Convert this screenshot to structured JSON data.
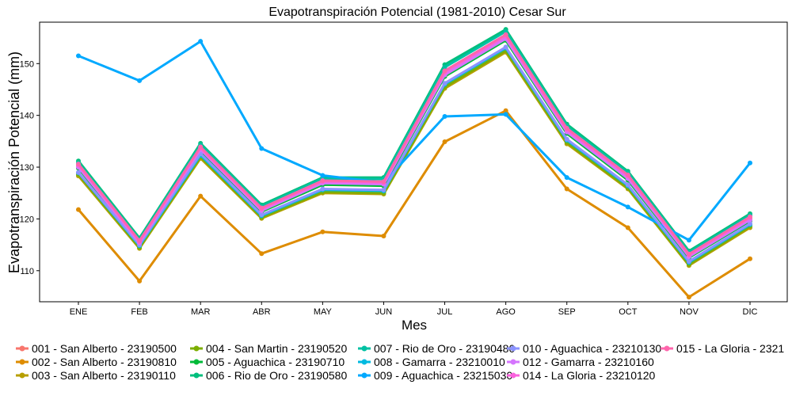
{
  "chart_data": {
    "type": "line",
    "title": "Evapotranspiración Potencial (1981-2010)  Cesar Sur",
    "xlabel": "Mes",
    "ylabel": "Evapotranspiración Potencial  (mm)",
    "categories": [
      "ENE",
      "FEB",
      "MAR",
      "ABR",
      "MAY",
      "JUN",
      "JUL",
      "AGO",
      "SEP",
      "OCT",
      "NOV",
      "DIC"
    ],
    "ylim": [
      104,
      158
    ],
    "yticks": [
      110,
      120,
      130,
      140,
      150
    ],
    "grid": false,
    "legend_position": "bottom",
    "series": [
      {
        "name": "001 - San Alberto - 23190500",
        "color": "#F8766D",
        "values": [
          130.2,
          115.5,
          133.5,
          121.7,
          127.0,
          126.8,
          148.0,
          155.0,
          137.0,
          128.0,
          112.8,
          120.0
        ]
      },
      {
        "name": "002 - San Alberto - 23190810",
        "color": "#DE8C00",
        "values": [
          121.8,
          108.0,
          124.4,
          113.3,
          117.5,
          116.7,
          134.9,
          140.9,
          125.8,
          118.3,
          104.9,
          112.3
        ]
      },
      {
        "name": "003 - San Alberto - 23190110",
        "color": "#B79F00",
        "values": [
          128.3,
          114.3,
          131.7,
          120.1,
          125.0,
          124.8,
          145.2,
          152.2,
          134.5,
          125.8,
          111.0,
          118.3
        ]
      },
      {
        "name": "004 - San Martin - 23190520",
        "color": "#7CAE00",
        "values": [
          128.6,
          114.5,
          132.0,
          120.3,
          125.2,
          125.0,
          145.5,
          152.5,
          134.8,
          126.0,
          111.2,
          118.6
        ]
      },
      {
        "name": "005 - Aguachica - 23190710",
        "color": "#00BA38",
        "values": [
          129.8,
          115.2,
          133.2,
          121.4,
          126.6,
          126.4,
          147.5,
          154.5,
          136.5,
          127.5,
          112.5,
          119.6
        ]
      },
      {
        "name": "006 - Rio de Oro - 23190580",
        "color": "#00BF7D",
        "values": [
          131.2,
          116.3,
          134.6,
          122.7,
          128.0,
          128.0,
          149.8,
          156.6,
          138.3,
          129.2,
          113.8,
          121.0
        ]
      },
      {
        "name": "007 - Rio de Oro - 23190480",
        "color": "#00C1A3",
        "values": [
          130.8,
          116.0,
          134.3,
          122.4,
          127.8,
          127.7,
          149.3,
          156.2,
          137.9,
          128.9,
          113.5,
          120.7
        ]
      },
      {
        "name": "008 - Gamarra - 23210010",
        "color": "#00BAE0",
        "values": [
          128.9,
          114.8,
          132.3,
          120.6,
          125.6,
          125.4,
          146.0,
          153.0,
          135.2,
          126.4,
          111.6,
          118.9
        ]
      },
      {
        "name": "009 - Aguachica - 23215030",
        "color": "#00A9FF",
        "values": [
          151.5,
          146.7,
          154.3,
          133.6,
          128.4,
          127.0,
          139.8,
          140.2,
          128.0,
          122.3,
          115.9,
          130.8
        ]
      },
      {
        "name": "010 - Aguachica - 23210130",
        "color": "#8B93FF",
        "values": [
          129.0,
          115.0,
          132.6,
          120.8,
          125.8,
          125.6,
          146.2,
          153.2,
          135.4,
          126.6,
          111.8,
          119.1
        ]
      },
      {
        "name": "012 - Gamarra - 23210160",
        "color": "#D575FE",
        "values": [
          130.0,
          115.4,
          133.4,
          121.6,
          126.9,
          126.7,
          147.8,
          154.8,
          136.8,
          127.8,
          112.7,
          119.8
        ]
      },
      {
        "name": "014 - La Gloria - 23210120",
        "color": "#F962DD",
        "values": [
          130.4,
          115.6,
          133.7,
          121.9,
          127.2,
          127.0,
          148.3,
          155.3,
          137.2,
          128.3,
          113.0,
          120.2
        ]
      },
      {
        "name": "015 - La Gloria - 2321",
        "color": "#FF65AC",
        "values": [
          130.6,
          115.8,
          133.9,
          122.1,
          127.4,
          127.2,
          148.6,
          155.6,
          137.5,
          128.5,
          113.2,
          120.4
        ]
      }
    ]
  }
}
